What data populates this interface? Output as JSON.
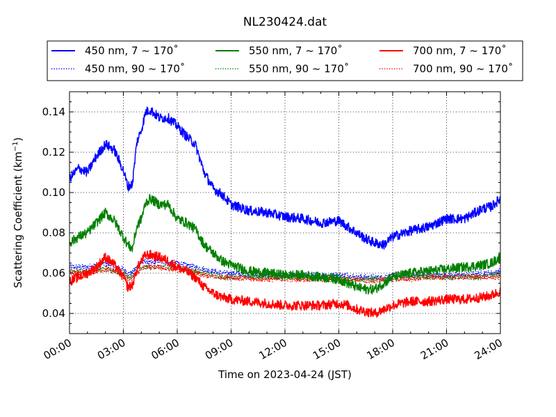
{
  "chart_data": {
    "type": "line",
    "title": "NL230424.dat",
    "xlabel": "Time on 2023-04-24 (JST)",
    "ylabel_main": "Scattering Coefficient (km",
    "ylabel_sup": "−1",
    "ylabel_close": ")",
    "xlim": [
      0,
      24
    ],
    "ylim": [
      0.03,
      0.15
    ],
    "x_tick_values": [
      0,
      3,
      6,
      9,
      12,
      15,
      18,
      21,
      24
    ],
    "x_tick_labels": [
      "00:00",
      "03:00",
      "06:00",
      "09:00",
      "12:00",
      "15:00",
      "18:00",
      "21:00",
      "24:00"
    ],
    "y_tick_values": [
      0.04,
      0.06,
      0.08,
      0.1,
      0.12,
      0.14
    ],
    "y_tick_labels": [
      "0.04",
      "0.06",
      "0.08",
      "0.10",
      "0.12",
      "0.14"
    ],
    "grid": true,
    "legend_position": "top",
    "x": [
      0,
      0.5,
      1,
      1.5,
      2,
      2.5,
      3,
      3.25,
      3.5,
      3.75,
      4,
      4.25,
      4.5,
      5,
      5.5,
      6,
      6.5,
      7,
      7.5,
      8,
      8.5,
      9,
      10,
      11,
      12,
      13,
      14,
      15,
      15.5,
      16,
      16.5,
      17,
      17.5,
      18,
      19,
      20,
      21,
      22,
      23,
      23.5,
      24
    ],
    "series": [
      {
        "name": "450 nm, 7 ~ 170˚",
        "color": "#0000ff",
        "style": "solid",
        "values": [
          0.107,
          0.112,
          0.11,
          0.118,
          0.124,
          0.121,
          0.111,
          0.103,
          0.104,
          0.125,
          0.131,
          0.14,
          0.141,
          0.137,
          0.137,
          0.133,
          0.128,
          0.124,
          0.11,
          0.102,
          0.099,
          0.094,
          0.091,
          0.09,
          0.088,
          0.087,
          0.085,
          0.086,
          0.083,
          0.08,
          0.077,
          0.075,
          0.074,
          0.078,
          0.081,
          0.083,
          0.087,
          0.087,
          0.092,
          0.093,
          0.097
        ]
      },
      {
        "name": "450 nm, 90 ~ 170˚",
        "color": "#0000ff",
        "style": "dotted",
        "values": [
          0.063,
          0.063,
          0.063,
          0.064,
          0.065,
          0.063,
          0.062,
          0.06,
          0.06,
          0.063,
          0.065,
          0.066,
          0.065,
          0.066,
          0.065,
          0.065,
          0.064,
          0.063,
          0.062,
          0.061,
          0.06,
          0.06,
          0.059,
          0.059,
          0.059,
          0.059,
          0.059,
          0.059,
          0.059,
          0.058,
          0.058,
          0.058,
          0.058,
          0.059,
          0.059,
          0.059,
          0.059,
          0.059,
          0.06,
          0.06,
          0.061
        ]
      },
      {
        "name": "550 nm, 7 ~ 170˚",
        "color": "#008000",
        "style": "solid",
        "values": [
          0.075,
          0.078,
          0.08,
          0.085,
          0.09,
          0.086,
          0.078,
          0.074,
          0.072,
          0.083,
          0.087,
          0.095,
          0.097,
          0.094,
          0.094,
          0.087,
          0.085,
          0.082,
          0.074,
          0.07,
          0.066,
          0.064,
          0.061,
          0.06,
          0.059,
          0.059,
          0.058,
          0.057,
          0.055,
          0.053,
          0.052,
          0.052,
          0.055,
          0.058,
          0.06,
          0.061,
          0.062,
          0.063,
          0.064,
          0.065,
          0.068
        ]
      },
      {
        "name": "550 nm, 90 ~ 170˚",
        "color": "#008000",
        "style": "dotted",
        "values": [
          0.061,
          0.061,
          0.061,
          0.062,
          0.062,
          0.061,
          0.06,
          0.058,
          0.058,
          0.061,
          0.062,
          0.063,
          0.063,
          0.063,
          0.063,
          0.063,
          0.062,
          0.061,
          0.06,
          0.059,
          0.058,
          0.058,
          0.058,
          0.058,
          0.058,
          0.058,
          0.058,
          0.058,
          0.057,
          0.057,
          0.057,
          0.057,
          0.057,
          0.058,
          0.058,
          0.058,
          0.058,
          0.058,
          0.058,
          0.059,
          0.059
        ]
      },
      {
        "name": "700 nm, 7 ~ 170˚",
        "color": "#ff0000",
        "style": "solid",
        "values": [
          0.056,
          0.058,
          0.06,
          0.063,
          0.068,
          0.064,
          0.058,
          0.053,
          0.054,
          0.062,
          0.066,
          0.069,
          0.069,
          0.068,
          0.066,
          0.063,
          0.061,
          0.058,
          0.053,
          0.05,
          0.048,
          0.047,
          0.046,
          0.045,
          0.044,
          0.044,
          0.044,
          0.045,
          0.044,
          0.042,
          0.041,
          0.04,
          0.042,
          0.044,
          0.046,
          0.046,
          0.047,
          0.047,
          0.048,
          0.049,
          0.051
        ]
      },
      {
        "name": "700 nm, 90 ~ 170˚",
        "color": "#ff0000",
        "style": "dotted",
        "values": [
          0.06,
          0.06,
          0.06,
          0.061,
          0.062,
          0.061,
          0.059,
          0.057,
          0.057,
          0.06,
          0.062,
          0.063,
          0.063,
          0.063,
          0.062,
          0.062,
          0.061,
          0.06,
          0.059,
          0.058,
          0.058,
          0.058,
          0.057,
          0.057,
          0.057,
          0.057,
          0.057,
          0.057,
          0.057,
          0.057,
          0.056,
          0.056,
          0.057,
          0.057,
          0.057,
          0.058,
          0.058,
          0.058,
          0.058,
          0.058,
          0.058
        ]
      }
    ]
  }
}
